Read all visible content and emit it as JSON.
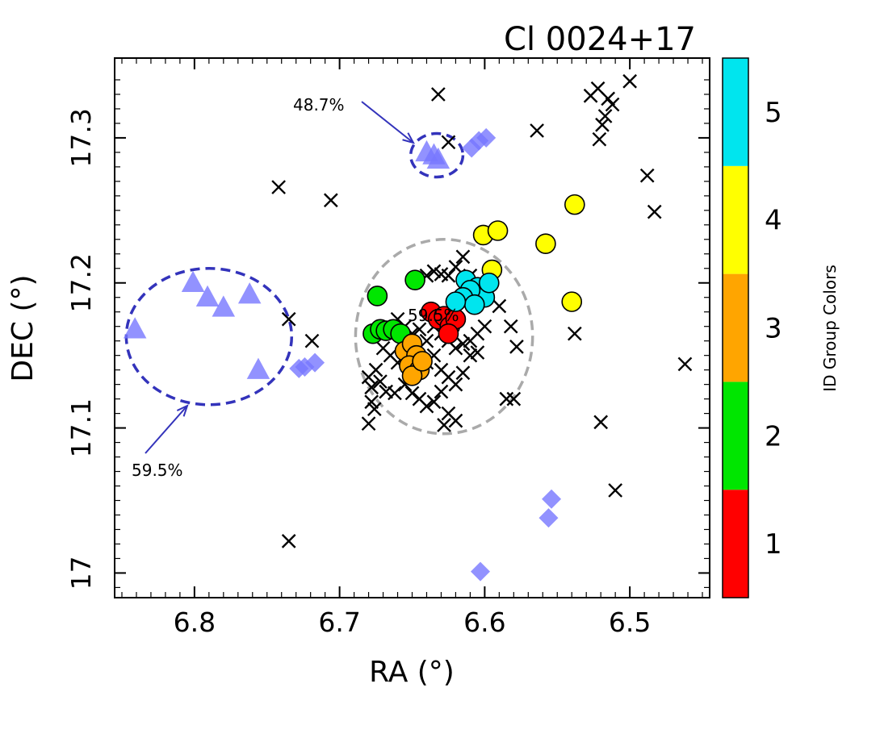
{
  "chart_data": {
    "type": "scatter",
    "title": "Cl 0024+17",
    "xlabel": "RA (°)",
    "ylabel": "DEC (°)",
    "xlim": [
      6.855,
      6.445
    ],
    "ylim": [
      16.983,
      17.355
    ],
    "x_reversed": true,
    "x_ticks": [
      "6.8",
      "6.7",
      "6.6",
      "6.5"
    ],
    "x_tick_values": [
      6.8,
      6.7,
      6.6,
      6.5
    ],
    "y_ticks": [
      "17",
      "17.1",
      "17.2",
      "17.3"
    ],
    "y_tick_values": [
      17.0,
      17.1,
      17.2,
      17.3
    ],
    "grid": false,
    "colorbar": {
      "title": "ID Group Colors",
      "labels": [
        "1",
        "2",
        "3",
        "4",
        "5"
      ],
      "colors": [
        "#ff0000",
        "#00e600",
        "#ffa500",
        "#ffff00",
        "#00e5ee"
      ]
    },
    "annotations": [
      {
        "text": "48.7%",
        "target": "upper-dashed-circle"
      },
      {
        "text": "59.5%",
        "target": "left-dashed-ellipse"
      },
      {
        "text": "59.5%",
        "target": "central-gray-circle"
      }
    ],
    "regions": [
      {
        "name": "upper-dashed-circle",
        "center": [
          6.633,
          17.288
        ],
        "radius_x": 0.018,
        "radius_y": 0.015,
        "color": "#3333bb"
      },
      {
        "name": "left-dashed-ellipse",
        "center": [
          6.79,
          17.163
        ],
        "radius_x": 0.057,
        "radius_y": 0.047,
        "color": "#3333bb"
      },
      {
        "name": "central-gray-circle",
        "center": [
          6.628,
          17.163
        ],
        "radius_x": 0.061,
        "radius_y": 0.067,
        "color": "#aaaaaa"
      }
    ],
    "series": [
      {
        "marker": "x",
        "color": "#000000",
        "points": [
          [
            6.632,
            17.33
          ],
          [
            6.564,
            17.305
          ],
          [
            6.742,
            17.266
          ],
          [
            6.706,
            17.257
          ],
          [
            6.527,
            17.329
          ],
          [
            6.522,
            17.334
          ],
          [
            6.515,
            17.327
          ],
          [
            6.517,
            17.315
          ],
          [
            6.519,
            17.309
          ],
          [
            6.521,
            17.299
          ],
          [
            6.512,
            17.323
          ],
          [
            6.5,
            17.339
          ],
          [
            6.625,
            17.297
          ],
          [
            6.488,
            17.274
          ],
          [
            6.483,
            17.249
          ],
          [
            6.735,
            17.175
          ],
          [
            6.719,
            17.16
          ],
          [
            6.538,
            17.165
          ],
          [
            6.462,
            17.144
          ],
          [
            6.578,
            17.156
          ],
          [
            6.582,
            17.17
          ],
          [
            6.59,
            17.184
          ],
          [
            6.585,
            17.12
          ],
          [
            6.58,
            17.12
          ],
          [
            6.52,
            17.104
          ],
          [
            6.51,
            17.057
          ],
          [
            6.735,
            17.022
          ],
          [
            6.64,
            17.205
          ],
          [
            6.635,
            17.208
          ],
          [
            6.63,
            17.206
          ],
          [
            6.625,
            17.205
          ],
          [
            6.62,
            17.211
          ],
          [
            6.615,
            17.218
          ],
          [
            6.61,
            17.205
          ],
          [
            6.66,
            17.175
          ],
          [
            6.655,
            17.17
          ],
          [
            6.65,
            17.165
          ],
          [
            6.645,
            17.168
          ],
          [
            6.64,
            17.16
          ],
          [
            6.635,
            17.17
          ],
          [
            6.63,
            17.165
          ],
          [
            6.625,
            17.16
          ],
          [
            6.62,
            17.155
          ],
          [
            6.615,
            17.158
          ],
          [
            6.61,
            17.16
          ],
          [
            6.605,
            17.165
          ],
          [
            6.6,
            17.17
          ],
          [
            6.67,
            17.155
          ],
          [
            6.665,
            17.15
          ],
          [
            6.66,
            17.145
          ],
          [
            6.675,
            17.14
          ],
          [
            6.68,
            17.135
          ],
          [
            6.678,
            17.128
          ],
          [
            6.672,
            17.132
          ],
          [
            6.668,
            17.125
          ],
          [
            6.662,
            17.124
          ],
          [
            6.655,
            17.13
          ],
          [
            6.65,
            17.135
          ],
          [
            6.645,
            17.14
          ],
          [
            6.64,
            17.145
          ],
          [
            6.635,
            17.15
          ],
          [
            6.63,
            17.14
          ],
          [
            6.625,
            17.135
          ],
          [
            6.62,
            17.13
          ],
          [
            6.615,
            17.138
          ],
          [
            6.61,
            17.15
          ],
          [
            6.605,
            17.152
          ],
          [
            6.645,
            17.12
          ],
          [
            6.64,
            17.115
          ],
          [
            6.635,
            17.118
          ],
          [
            6.63,
            17.125
          ],
          [
            6.625,
            17.11
          ],
          [
            6.62,
            17.105
          ],
          [
            6.628,
            17.102
          ],
          [
            6.678,
            17.118
          ],
          [
            6.68,
            17.103
          ],
          [
            6.676,
            17.113
          ],
          [
            6.65,
            17.124
          ]
        ]
      },
      {
        "marker": "triangle",
        "color": "#7777ff",
        "points": [
          [
            6.841,
            17.168
          ],
          [
            6.801,
            17.2
          ],
          [
            6.791,
            17.19
          ],
          [
            6.78,
            17.183
          ],
          [
            6.762,
            17.192
          ],
          [
            6.756,
            17.14
          ],
          [
            6.64,
            17.29
          ],
          [
            6.635,
            17.288
          ],
          [
            6.632,
            17.285
          ]
        ]
      },
      {
        "marker": "diamond",
        "color": "#7777ff",
        "points": [
          [
            6.609,
            17.293
          ],
          [
            6.604,
            17.298
          ],
          [
            6.599,
            17.3
          ],
          [
            6.728,
            17.141
          ],
          [
            6.724,
            17.142
          ],
          [
            6.717,
            17.145
          ],
          [
            6.554,
            17.051
          ],
          [
            6.556,
            17.038
          ],
          [
            6.603,
            17.001
          ]
        ]
      },
      {
        "marker": "circle",
        "group": 1,
        "color": "#ff0000",
        "points": [
          [
            6.637,
            17.18
          ],
          [
            6.632,
            17.175
          ],
          [
            6.628,
            17.177
          ],
          [
            6.624,
            17.17
          ],
          [
            6.62,
            17.175
          ],
          [
            6.625,
            17.165
          ]
        ]
      },
      {
        "marker": "circle",
        "group": 2,
        "color": "#00e600",
        "points": [
          [
            6.674,
            17.191
          ],
          [
            6.648,
            17.202
          ],
          [
            6.677,
            17.165
          ],
          [
            6.672,
            17.168
          ],
          [
            6.668,
            17.167
          ],
          [
            6.663,
            17.168
          ],
          [
            6.658,
            17.165
          ]
        ]
      },
      {
        "marker": "circle",
        "group": 3,
        "color": "#ffa500",
        "points": [
          [
            6.655,
            17.153
          ],
          [
            6.65,
            17.158
          ],
          [
            6.647,
            17.15
          ],
          [
            6.652,
            17.143
          ],
          [
            6.645,
            17.14
          ],
          [
            6.65,
            17.136
          ],
          [
            6.643,
            17.146
          ]
        ]
      },
      {
        "marker": "circle",
        "group": 4,
        "color": "#ffff00",
        "points": [
          [
            6.601,
            17.233
          ],
          [
            6.591,
            17.236
          ],
          [
            6.538,
            17.254
          ],
          [
            6.558,
            17.227
          ],
          [
            6.595,
            17.209
          ],
          [
            6.54,
            17.187
          ]
        ]
      },
      {
        "marker": "circle",
        "group": 5,
        "color": "#00e5ee",
        "points": [
          [
            6.613,
            17.202
          ],
          [
            6.605,
            17.197
          ],
          [
            6.6,
            17.19
          ],
          [
            6.61,
            17.195
          ],
          [
            6.615,
            17.19
          ],
          [
            6.607,
            17.185
          ],
          [
            6.597,
            17.2
          ],
          [
            6.62,
            17.187
          ]
        ]
      }
    ]
  }
}
